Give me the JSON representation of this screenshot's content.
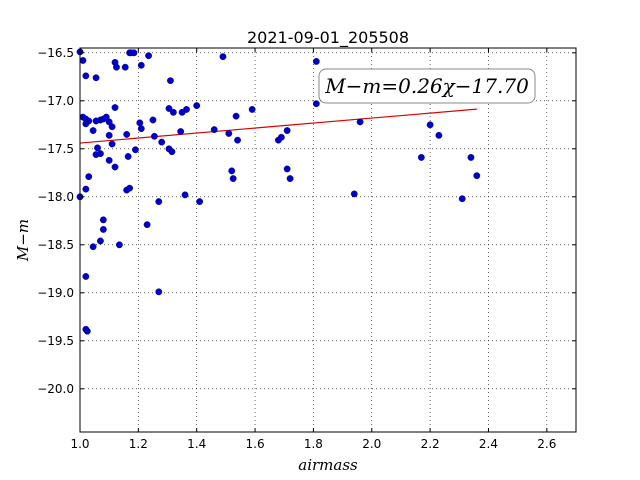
{
  "chart_data": {
    "type": "scatter",
    "title": "2021-09-01_205508",
    "xlabel": "airmass",
    "ylabel": "M−m",
    "xlim": [
      1.0,
      2.7
    ],
    "ylim": [
      -16.45,
      -20.45
    ],
    "y_inverted": true,
    "grid": true,
    "xticks": [
      "1.0",
      "1.2",
      "1.4",
      "1.6",
      "1.8",
      "2.0",
      "2.2",
      "2.4",
      "2.6"
    ],
    "yticks": [
      "−16.5",
      "−17.0",
      "−17.5",
      "−18.0",
      "−18.5",
      "−19.0",
      "−19.5",
      "−20.0"
    ],
    "annotation": "M−m=0.26χ−17.70",
    "colors": {
      "points": "#0000c8",
      "fit_line": "#dd0000"
    },
    "fit_line": {
      "slope": 0.26,
      "intercept": -17.7,
      "x_range": [
        1.0,
        2.36
      ]
    },
    "points": [
      [
        1.0,
        -16.49
      ],
      [
        1.01,
        -16.58
      ],
      [
        1.02,
        -16.74
      ],
      [
        1.055,
        -16.76
      ],
      [
        1.12,
        -16.6
      ],
      [
        1.125,
        -16.65
      ],
      [
        1.155,
        -16.65
      ],
      [
        1.17,
        -16.5
      ],
      [
        1.175,
        -16.5
      ],
      [
        1.185,
        -16.5
      ],
      [
        1.21,
        -16.63
      ],
      [
        1.235,
        -16.53
      ],
      [
        1.49,
        -16.54
      ],
      [
        1.81,
        -16.59
      ],
      [
        1.31,
        -16.79
      ],
      [
        1.01,
        -17.17
      ],
      [
        1.02,
        -17.19
      ],
      [
        1.025,
        -17.21
      ],
      [
        1.03,
        -17.21
      ],
      [
        1.02,
        -17.24
      ],
      [
        1.045,
        -17.31
      ],
      [
        1.055,
        -17.21
      ],
      [
        1.07,
        -17.2
      ],
      [
        1.08,
        -17.19
      ],
      [
        1.09,
        -17.17
      ],
      [
        1.1,
        -17.22
      ],
      [
        1.11,
        -17.27
      ],
      [
        1.12,
        -17.07
      ],
      [
        1.1,
        -17.36
      ],
      [
        1.06,
        -17.49
      ],
      [
        1.055,
        -17.56
      ],
      [
        1.07,
        -17.55
      ],
      [
        1.1,
        -17.62
      ],
      [
        1.12,
        -17.69
      ],
      [
        1.11,
        -17.45
      ],
      [
        1.16,
        -17.35
      ],
      [
        1.165,
        -17.58
      ],
      [
        1.19,
        -17.51
      ],
      [
        1.205,
        -17.23
      ],
      [
        1.21,
        -17.29
      ],
      [
        1.25,
        -17.2
      ],
      [
        1.255,
        -17.37
      ],
      [
        1.28,
        -17.43
      ],
      [
        1.305,
        -17.08
      ],
      [
        1.32,
        -17.12
      ],
      [
        1.305,
        -17.5
      ],
      [
        1.315,
        -17.53
      ],
      [
        1.345,
        -17.32
      ],
      [
        1.35,
        -17.12
      ],
      [
        1.365,
        -17.09
      ],
      [
        1.4,
        -17.05
      ],
      [
        1.46,
        -17.3
      ],
      [
        1.51,
        -17.34
      ],
      [
        1.535,
        -17.16
      ],
      [
        1.54,
        -17.41
      ],
      [
        1.59,
        -17.09
      ],
      [
        1.52,
        -17.73
      ],
      [
        1.525,
        -17.81
      ],
      [
        1.68,
        -17.41
      ],
      [
        1.69,
        -17.38
      ],
      [
        1.71,
        -17.31
      ],
      [
        1.71,
        -17.71
      ],
      [
        1.72,
        -17.81
      ],
      [
        1.81,
        -17.03
      ],
      [
        1.96,
        -17.22
      ],
      [
        2.17,
        -17.59
      ],
      [
        2.2,
        -17.25
      ],
      [
        2.23,
        -17.36
      ],
      [
        2.34,
        -17.59
      ],
      [
        2.36,
        -17.78
      ],
      [
        2.31,
        -18.02
      ],
      [
        1.94,
        -17.97
      ],
      [
        1.36,
        -17.98
      ],
      [
        1.41,
        -18.05
      ],
      [
        1.27,
        -18.05
      ],
      [
        1.17,
        -17.91
      ],
      [
        1.16,
        -17.93
      ],
      [
        1.03,
        -17.79
      ],
      [
        1.02,
        -17.92
      ],
      [
        1.0,
        -18.0
      ],
      [
        1.08,
        -18.24
      ],
      [
        1.08,
        -18.34
      ],
      [
        1.07,
        -18.46
      ],
      [
        1.045,
        -18.52
      ],
      [
        1.135,
        -18.5
      ],
      [
        1.23,
        -18.29
      ],
      [
        1.02,
        -18.83
      ],
      [
        1.27,
        -18.99
      ],
      [
        1.02,
        -19.38
      ],
      [
        1.025,
        -19.4
      ]
    ]
  }
}
